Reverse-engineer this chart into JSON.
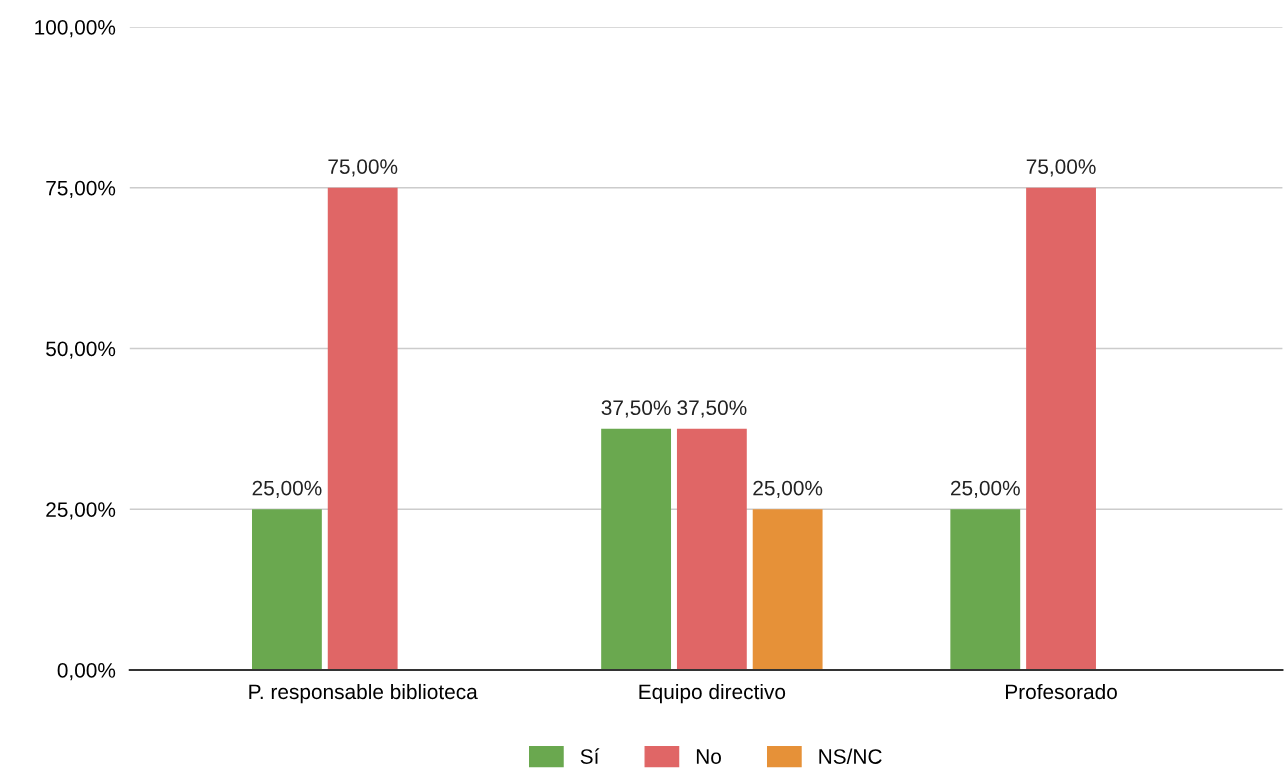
{
  "chart_data": {
    "type": "bar",
    "categories": [
      "P. responsable biblioteca",
      "Equipo directivo",
      "Profesorado"
    ],
    "series": [
      {
        "name": "Sí",
        "color": "#6aa84f",
        "values": [
          25,
          37.5,
          25
        ],
        "value_labels": [
          "25,00%",
          "37,50%",
          "25,00%"
        ]
      },
      {
        "name": "No",
        "color": "#e06666",
        "values": [
          75,
          37.5,
          75
        ],
        "value_labels": [
          "75,00%",
          "37,50%",
          "75,00%"
        ]
      },
      {
        "name": "NS/NC",
        "color": "#e69138",
        "values": [
          null,
          25,
          null
        ],
        "value_labels": [
          null,
          "25,00%",
          null
        ]
      }
    ],
    "ylim": [
      0,
      100
    ],
    "yticks": [
      {
        "value": 0,
        "label": "0,00%"
      },
      {
        "value": 25,
        "label": "25,00%"
      },
      {
        "value": 50,
        "label": "50,00%"
      },
      {
        "value": 75,
        "label": "75,00%"
      },
      {
        "value": 100,
        "label": "100,00%"
      }
    ],
    "grid": "y",
    "legend": "bottom"
  }
}
